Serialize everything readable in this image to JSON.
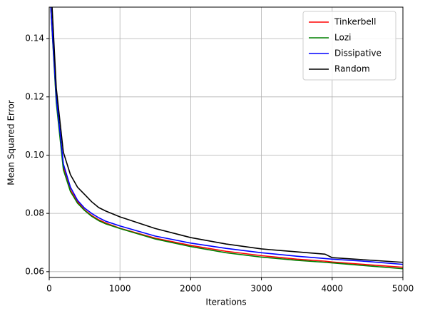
{
  "chart_data": {
    "type": "line",
    "xlabel": "Iterations",
    "ylabel": "Mean Squared Error",
    "x": [
      0,
      100,
      200,
      300,
      400,
      500,
      600,
      700,
      800,
      1000,
      1500,
      2000,
      2500,
      3000,
      3500,
      3900,
      4000,
      4500,
      5000
    ],
    "series": [
      {
        "name": "Tinkerbell",
        "color": "#ff0000",
        "values": [
          0.16,
          0.119,
          0.096,
          0.088,
          0.084,
          0.0812,
          0.0793,
          0.0778,
          0.0767,
          0.0749,
          0.0715,
          0.069,
          0.067,
          0.0655,
          0.0643,
          0.0636,
          0.0633,
          0.0624,
          0.0615
        ]
      },
      {
        "name": "Lozi",
        "color": "#008000",
        "values": [
          0.16,
          0.118,
          0.095,
          0.0875,
          0.0835,
          0.081,
          0.079,
          0.0775,
          0.0764,
          0.0748,
          0.0712,
          0.0686,
          0.0665,
          0.065,
          0.0639,
          0.0632,
          0.063,
          0.062,
          0.061
        ]
      },
      {
        "name": "Dissipative",
        "color": "#0000ff",
        "values": [
          0.16,
          0.12,
          0.097,
          0.089,
          0.0845,
          0.0818,
          0.08,
          0.0785,
          0.0773,
          0.0757,
          0.0722,
          0.0698,
          0.068,
          0.0665,
          0.0653,
          0.0645,
          0.0643,
          0.0635,
          0.0625
        ]
      },
      {
        "name": "Random",
        "color": "#000000",
        "values": [
          0.17,
          0.123,
          0.101,
          0.0933,
          0.089,
          0.0865,
          0.084,
          0.082,
          0.0808,
          0.0788,
          0.0748,
          0.0717,
          0.0695,
          0.0678,
          0.0668,
          0.066,
          0.0648,
          0.064,
          0.0632
        ]
      }
    ],
    "xlim": [
      0,
      5000
    ],
    "xticks": [
      0,
      1000,
      2000,
      3000,
      4000,
      5000
    ],
    "ylim": [
      0.058,
      0.1508
    ],
    "yticks": [
      0.06,
      0.08,
      {
        "value": 0.1,
        "label": "0.10"
      },
      0.12,
      0.14
    ],
    "grid": true,
    "legend": "upper-right"
  }
}
